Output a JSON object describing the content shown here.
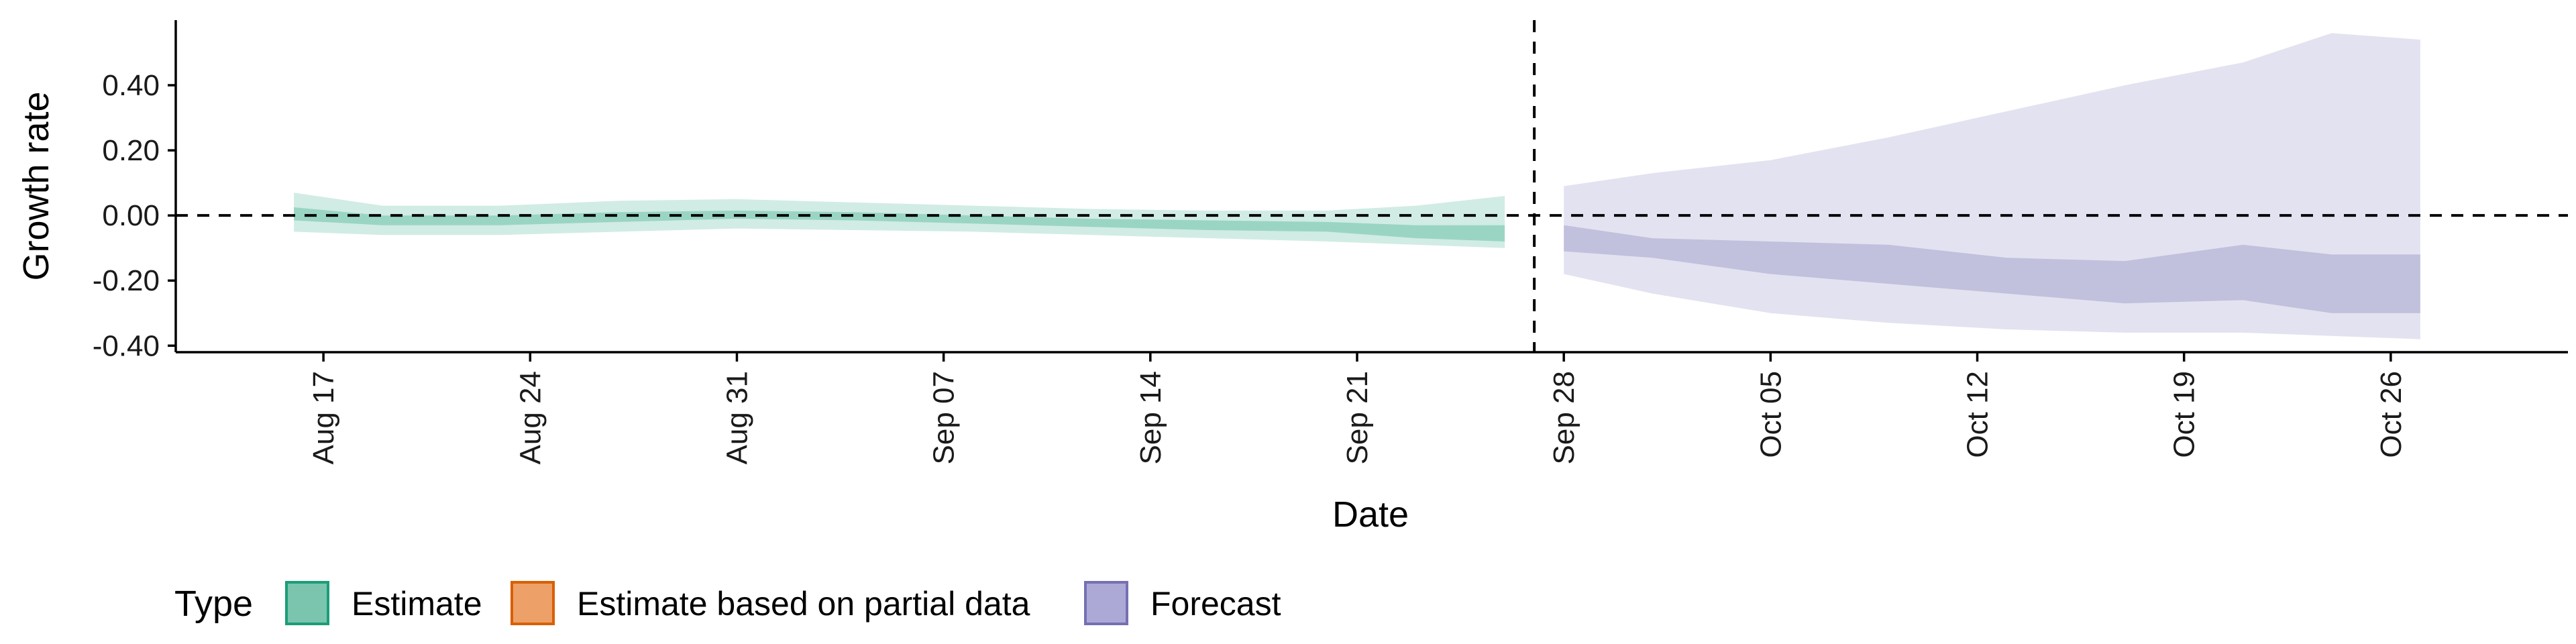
{
  "chart_data": {
    "type": "area",
    "xlabel": "Date",
    "ylabel": "Growth rate",
    "x_tick_labels": [
      "Aug 17",
      "Aug 24",
      "Aug 31",
      "Sep 07",
      "Sep 14",
      "Sep 21",
      "Sep 28",
      "Oct 05",
      "Oct 12",
      "Oct 19",
      "Oct 26"
    ],
    "x_tick_dates": [
      "2020-08-17",
      "2020-08-24",
      "2020-08-31",
      "2020-09-07",
      "2020-09-14",
      "2020-09-21",
      "2020-09-28",
      "2020-10-05",
      "2020-10-12",
      "2020-10-19",
      "2020-10-26"
    ],
    "y_tick_labels": [
      "-0.40",
      "-0.20",
      "0.00",
      "0.20",
      "0.40"
    ],
    "y_ticks": [
      -0.4,
      -0.2,
      0.0,
      0.2,
      0.4
    ],
    "ylim": [
      -0.42,
      0.6
    ],
    "xlim": [
      "2020-08-12",
      "2020-11-01"
    ],
    "reference_lines": {
      "horizontal_y": 0.0,
      "vertical_date": "2020-09-27"
    },
    "legend": {
      "title": "Type",
      "position": "bottom",
      "entries": [
        {
          "label": "Estimate",
          "fill": "#7BC5AE",
          "stroke": "#1B9E77"
        },
        {
          "label": "Estimate based on partial data",
          "fill": "#EDA068",
          "stroke": "#D95F02"
        },
        {
          "label": "Forecast",
          "fill": "#ADA9D6",
          "stroke": "#7570B3"
        }
      ]
    },
    "colors": {
      "estimate": "#1B9E77",
      "partial": "#D95F02",
      "forecast": "#7570B3"
    },
    "series": [
      {
        "name": "Estimate",
        "color": "#1B9E77",
        "points": [
          {
            "date": "2020-08-16",
            "lo90": -0.05,
            "hi90": 0.07,
            "lo50": -0.015,
            "hi50": 0.025
          },
          {
            "date": "2020-08-19",
            "lo90": -0.06,
            "hi90": 0.03,
            "lo50": -0.03,
            "hi50": 0.0
          },
          {
            "date": "2020-08-23",
            "lo90": -0.06,
            "hi90": 0.03,
            "lo50": -0.03,
            "hi50": 0.0
          },
          {
            "date": "2020-08-27",
            "lo90": -0.05,
            "hi90": 0.045,
            "lo50": -0.02,
            "hi50": 0.01
          },
          {
            "date": "2020-08-31",
            "lo90": -0.04,
            "hi90": 0.05,
            "lo50": -0.01,
            "hi50": 0.015
          },
          {
            "date": "2020-09-04",
            "lo90": -0.045,
            "hi90": 0.04,
            "lo50": -0.015,
            "hi50": 0.01
          },
          {
            "date": "2020-09-08",
            "lo90": -0.05,
            "hi90": 0.03,
            "lo50": -0.025,
            "hi50": 0.0
          },
          {
            "date": "2020-09-12",
            "lo90": -0.06,
            "hi90": 0.02,
            "lo50": -0.035,
            "hi50": -0.01
          },
          {
            "date": "2020-09-16",
            "lo90": -0.07,
            "hi90": 0.015,
            "lo50": -0.045,
            "hi50": -0.015
          },
          {
            "date": "2020-09-20",
            "lo90": -0.08,
            "hi90": 0.015,
            "lo50": -0.05,
            "hi50": -0.02
          },
          {
            "date": "2020-09-23",
            "lo90": -0.09,
            "hi90": 0.03,
            "lo50": -0.07,
            "hi50": -0.03
          },
          {
            "date": "2020-09-26",
            "lo90": -0.1,
            "hi90": 0.06,
            "lo50": -0.08,
            "hi50": -0.03
          }
        ]
      },
      {
        "name": "Forecast",
        "color": "#7570B3",
        "points": [
          {
            "date": "2020-09-28",
            "lo90": -0.18,
            "hi90": 0.09,
            "lo50": -0.11,
            "hi50": -0.03
          },
          {
            "date": "2020-10-01",
            "lo90": -0.24,
            "hi90": 0.13,
            "lo50": -0.13,
            "hi50": -0.07
          },
          {
            "date": "2020-10-05",
            "lo90": -0.3,
            "hi90": 0.17,
            "lo50": -0.18,
            "hi50": -0.08
          },
          {
            "date": "2020-10-09",
            "lo90": -0.33,
            "hi90": 0.24,
            "lo50": -0.21,
            "hi50": -0.09
          },
          {
            "date": "2020-10-13",
            "lo90": -0.35,
            "hi90": 0.32,
            "lo50": -0.24,
            "hi50": -0.13
          },
          {
            "date": "2020-10-17",
            "lo90": -0.36,
            "hi90": 0.4,
            "lo50": -0.27,
            "hi50": -0.14
          },
          {
            "date": "2020-10-21",
            "lo90": -0.36,
            "hi90": 0.47,
            "lo50": -0.26,
            "hi50": -0.09
          },
          {
            "date": "2020-10-24",
            "lo90": -0.37,
            "hi90": 0.56,
            "lo50": -0.3,
            "hi50": -0.12
          },
          {
            "date": "2020-10-27",
            "lo90": -0.38,
            "hi90": 0.54,
            "lo50": -0.3,
            "hi50": -0.12
          }
        ]
      }
    ]
  }
}
